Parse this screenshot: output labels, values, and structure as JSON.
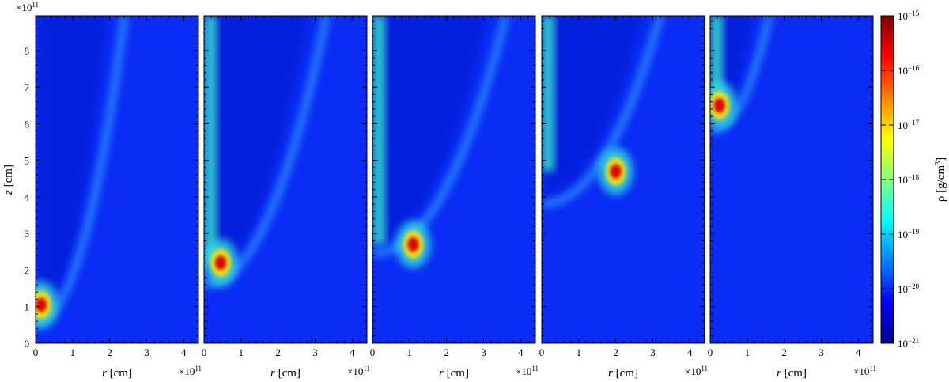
{
  "chart_data": {
    "type": "heatmap",
    "panel_count": 5,
    "xlabel_var": "r",
    "xlabel_unit": "[cm]",
    "ylabel_var": "z",
    "ylabel_unit": "[cm]",
    "x_exponent": "×10",
    "x_exponent_power": "11",
    "y_exponent": "×10",
    "y_exponent_power": "11",
    "xlim": [
      0,
      4.4
    ],
    "ylim": [
      0,
      8.95
    ],
    "x_ticks": [
      "0",
      "1",
      "2",
      "3",
      "4"
    ],
    "y_ticks": [
      "0",
      "1",
      "2",
      "3",
      "4",
      "5",
      "6",
      "7",
      "8"
    ],
    "colorbar": {
      "label": "ρ [g/cm",
      "label_sup": "3",
      "label_end": "]",
      "scale": "log",
      "range": [
        1e-21,
        1e-15
      ],
      "ticks": [
        {
          "base": "10",
          "exp": "−15"
        },
        {
          "base": "10",
          "exp": "−16"
        },
        {
          "base": "10",
          "exp": "−17"
        },
        {
          "base": "10",
          "exp": "−18"
        },
        {
          "base": "10",
          "exp": "−19"
        },
        {
          "base": "10",
          "exp": "−20"
        },
        {
          "base": "10",
          "exp": "−21"
        }
      ],
      "colormap": [
        "#00008f",
        "#0000ff",
        "#0080ff",
        "#00ffff",
        "#80ff80",
        "#ffff00",
        "#ff8000",
        "#ff0000",
        "#800000"
      ]
    },
    "background_color": "#0a2cf5",
    "panels": [
      {
        "shock_apex_z": 0.6,
        "shock_edge_r_top": 2.4,
        "dense_clump_z": 1.05,
        "dense_clump_r": 0.15
      },
      {
        "shock_apex_z": 1.6,
        "shock_edge_r_top": 3.3,
        "dense_clump_z": 2.2,
        "dense_clump_r": 0.45
      },
      {
        "shock_apex_z": 2.45,
        "shock_edge_r_top": 3.6,
        "dense_clump_z": 2.7,
        "dense_clump_r": 1.1
      },
      {
        "shock_apex_z": 3.8,
        "shock_edge_r_top": 3.2,
        "dense_clump_z": 4.7,
        "dense_clump_r": 2.0
      },
      {
        "shock_apex_z": 5.8,
        "shock_edge_r_top": 1.6,
        "dense_clump_z": 6.5,
        "dense_clump_r": 0.25
      }
    ]
  }
}
